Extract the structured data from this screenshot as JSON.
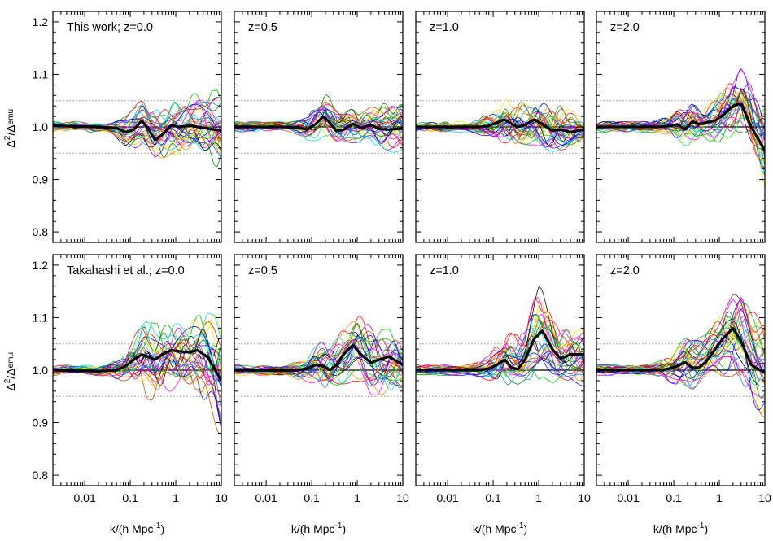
{
  "figure": {
    "ylabel_main": "Δ",
    "ylabel_sup": "2",
    "ylabel_mid": "/Δ",
    "ylabel_sub": "emu",
    "ylabel_sup2": "2",
    "xlabel_main": "k/(h Mpc",
    "xlabel_sup": "-1",
    "xlabel_end": ")"
  },
  "chart_data": [
    {
      "type": "line",
      "panel_label": "This work; z=0.0",
      "row": 0,
      "col": 0,
      "z": 0.0,
      "xscale": "log",
      "xlim": [
        0.002,
        10
      ],
      "ylim": [
        0.78,
        1.22
      ],
      "x_ticks": [
        "0.01",
        "0.1",
        "1",
        "10"
      ],
      "y_ticks": [
        "0.8",
        "0.9",
        "1.0",
        "1.1",
        "1.2"
      ],
      "reference_lines": [
        0.95,
        1.0,
        1.05
      ],
      "mean_curve": {
        "x": [
          0.002,
          0.02,
          0.05,
          0.08,
          0.12,
          0.18,
          0.25,
          0.35,
          0.5,
          0.8,
          1.2,
          2,
          3,
          5,
          10
        ],
        "y": [
          1.002,
          1.0,
          0.998,
          0.99,
          0.995,
          1.012,
          0.996,
          0.975,
          0.985,
          1.003,
          1.0,
          1.003,
          1.0,
          0.997,
          0.993
        ]
      },
      "spread_envelope": {
        "x": [
          0.002,
          0.03,
          0.08,
          0.2,
          0.5,
          1,
          3,
          10
        ],
        "lower": [
          0.99,
          0.99,
          0.965,
          0.96,
          0.935,
          0.945,
          0.94,
          0.925
        ],
        "upper": [
          1.01,
          1.01,
          1.02,
          1.06,
          1.04,
          1.055,
          1.065,
          1.075
        ]
      }
    },
    {
      "type": "line",
      "panel_label": "z=0.5",
      "row": 0,
      "col": 1,
      "z": 0.5,
      "xscale": "log",
      "xlim": [
        0.002,
        10
      ],
      "ylim": [
        0.78,
        1.22
      ],
      "x_ticks": [
        "0.01",
        "0.1",
        "1",
        "10"
      ],
      "y_ticks": [
        "0.8",
        "0.9",
        "1.0",
        "1.1",
        "1.2"
      ],
      "reference_lines": [
        0.95,
        1.0,
        1.05
      ],
      "mean_curve": {
        "x": [
          0.002,
          0.02,
          0.05,
          0.08,
          0.12,
          0.18,
          0.25,
          0.35,
          0.5,
          0.8,
          1.2,
          2,
          3,
          5,
          10
        ],
        "y": [
          1.0,
          1.0,
          0.999,
          0.995,
          1.005,
          1.02,
          1.008,
          0.992,
          0.995,
          1.006,
          0.998,
          1.004,
          0.996,
          0.995,
          0.997
        ]
      },
      "spread_envelope": {
        "x": [
          0.002,
          0.03,
          0.08,
          0.2,
          0.5,
          1,
          3,
          10
        ],
        "lower": [
          0.99,
          0.99,
          0.975,
          0.975,
          0.955,
          0.955,
          0.96,
          0.945
        ],
        "upper": [
          1.01,
          1.01,
          1.02,
          1.065,
          1.04,
          1.035,
          1.05,
          1.04
        ]
      }
    },
    {
      "type": "line",
      "panel_label": "z=1.0",
      "row": 0,
      "col": 2,
      "z": 1.0,
      "xscale": "log",
      "xlim": [
        0.002,
        10
      ],
      "ylim": [
        0.78,
        1.22
      ],
      "x_ticks": [
        "0.01",
        "0.1",
        "1",
        "10"
      ],
      "y_ticks": [
        "0.8",
        "0.9",
        "1.0",
        "1.1",
        "1.2"
      ],
      "reference_lines": [
        0.95,
        1.0,
        1.05
      ],
      "mean_curve": {
        "x": [
          0.002,
          0.02,
          0.05,
          0.08,
          0.12,
          0.18,
          0.25,
          0.35,
          0.5,
          0.8,
          1.2,
          2,
          3,
          5,
          10
        ],
        "y": [
          1.0,
          1.0,
          1.0,
          1.002,
          1.008,
          1.014,
          1.006,
          1.0,
          1.004,
          1.014,
          1.005,
          0.993,
          0.995,
          0.99,
          0.995
        ]
      },
      "spread_envelope": {
        "x": [
          0.002,
          0.03,
          0.08,
          0.2,
          0.5,
          1,
          3,
          10
        ],
        "lower": [
          0.99,
          0.99,
          0.98,
          0.965,
          0.96,
          0.955,
          0.96,
          0.965
        ],
        "upper": [
          1.01,
          1.01,
          1.025,
          1.06,
          1.045,
          1.06,
          1.045,
          1.02
        ]
      }
    },
    {
      "type": "line",
      "panel_label": "z=2.0",
      "row": 0,
      "col": 3,
      "z": 2.0,
      "xscale": "log",
      "xlim": [
        0.002,
        10
      ],
      "ylim": [
        0.78,
        1.22
      ],
      "x_ticks": [
        "0.01",
        "0.1",
        "1",
        "10"
      ],
      "y_ticks": [
        "0.8",
        "0.9",
        "1.0",
        "1.1",
        "1.2"
      ],
      "reference_lines": [
        0.95,
        1.0,
        1.05
      ],
      "mean_curve": {
        "x": [
          0.002,
          0.02,
          0.05,
          0.08,
          0.12,
          0.18,
          0.25,
          0.35,
          0.5,
          0.8,
          1.2,
          2,
          3,
          5,
          10
        ],
        "y": [
          1.0,
          1.0,
          1.0,
          1.002,
          1.005,
          0.995,
          1.01,
          1.005,
          1.008,
          1.012,
          1.022,
          1.04,
          1.045,
          1.0,
          0.955
        ]
      },
      "spread_envelope": {
        "x": [
          0.002,
          0.03,
          0.08,
          0.2,
          0.5,
          1,
          3,
          10
        ],
        "lower": [
          0.99,
          0.99,
          0.975,
          0.97,
          0.97,
          0.97,
          0.99,
          0.88
        ],
        "upper": [
          1.01,
          1.01,
          1.02,
          1.05,
          1.035,
          1.06,
          1.115,
          1.05
        ]
      }
    },
    {
      "type": "line",
      "panel_label": "Takahashi et al.; z=0.0",
      "row": 1,
      "col": 0,
      "z": 0.0,
      "xscale": "log",
      "xlim": [
        0.002,
        10
      ],
      "ylim": [
        0.78,
        1.22
      ],
      "x_ticks": [
        "0.01",
        "0.1",
        "1",
        "10"
      ],
      "y_ticks": [
        "0.8",
        "0.9",
        "1.0",
        "1.1",
        "1.2"
      ],
      "reference_lines": [
        0.95,
        1.0,
        1.05
      ],
      "mean_curve": {
        "x": [
          0.002,
          0.02,
          0.05,
          0.08,
          0.12,
          0.18,
          0.25,
          0.35,
          0.5,
          0.8,
          1.2,
          2,
          3,
          5,
          10
        ],
        "y": [
          1.0,
          0.998,
          1.0,
          1.008,
          1.02,
          1.03,
          1.025,
          1.02,
          1.03,
          1.038,
          1.036,
          1.034,
          1.038,
          1.025,
          0.98
        ]
      },
      "spread_envelope": {
        "x": [
          0.002,
          0.03,
          0.08,
          0.2,
          0.5,
          1,
          3,
          10
        ],
        "lower": [
          0.99,
          0.99,
          0.975,
          0.94,
          0.935,
          0.955,
          0.96,
          0.855
        ],
        "upper": [
          1.01,
          1.01,
          1.03,
          1.09,
          1.08,
          1.08,
          1.1,
          1.1
        ]
      }
    },
    {
      "type": "line",
      "panel_label": "z=0.5",
      "row": 1,
      "col": 1,
      "z": 0.5,
      "xscale": "log",
      "xlim": [
        0.002,
        10
      ],
      "ylim": [
        0.78,
        1.22
      ],
      "x_ticks": [
        "0.01",
        "0.1",
        "1",
        "10"
      ],
      "y_ticks": [
        "0.8",
        "0.9",
        "1.0",
        "1.1",
        "1.2"
      ],
      "reference_lines": [
        0.95,
        1.0,
        1.05
      ],
      "mean_curve": {
        "x": [
          0.002,
          0.02,
          0.05,
          0.08,
          0.12,
          0.18,
          0.25,
          0.35,
          0.5,
          0.8,
          1.2,
          2,
          3,
          5,
          10
        ],
        "y": [
          1.0,
          0.999,
          1.0,
          1.003,
          1.01,
          1.008,
          1.0,
          1.01,
          1.03,
          1.048,
          1.03,
          1.014,
          1.02,
          1.026,
          1.01
        ]
      },
      "spread_envelope": {
        "x": [
          0.002,
          0.03,
          0.08,
          0.2,
          0.5,
          1,
          3,
          10
        ],
        "lower": [
          0.99,
          0.99,
          0.975,
          0.95,
          0.96,
          0.98,
          0.945,
          0.94
        ],
        "upper": [
          1.01,
          1.01,
          1.025,
          1.06,
          1.07,
          1.115,
          1.07,
          1.065
        ]
      }
    },
    {
      "type": "line",
      "panel_label": "z=1.0",
      "row": 1,
      "col": 2,
      "z": 1.0,
      "xscale": "log",
      "xlim": [
        0.002,
        10
      ],
      "ylim": [
        0.78,
        1.22
      ],
      "x_ticks": [
        "0.01",
        "0.1",
        "1",
        "10"
      ],
      "y_ticks": [
        "0.8",
        "0.9",
        "1.0",
        "1.1",
        "1.2"
      ],
      "reference_lines": [
        0.95,
        1.0,
        1.05
      ],
      "mean_curve": {
        "x": [
          0.002,
          0.02,
          0.05,
          0.08,
          0.12,
          0.18,
          0.25,
          0.35,
          0.5,
          0.8,
          1.2,
          2,
          3,
          5,
          10
        ],
        "y": [
          1.0,
          1.0,
          1.0,
          1.003,
          1.01,
          1.02,
          1.005,
          1.002,
          1.02,
          1.06,
          1.075,
          1.04,
          1.022,
          1.03,
          1.03
        ]
      },
      "spread_envelope": {
        "x": [
          0.002,
          0.03,
          0.08,
          0.2,
          0.5,
          1,
          3,
          10
        ],
        "lower": [
          0.99,
          0.99,
          0.975,
          0.96,
          0.965,
          0.985,
          0.975,
          0.95
        ],
        "upper": [
          1.01,
          1.01,
          1.025,
          1.08,
          1.07,
          1.165,
          1.08,
          1.065
        ]
      }
    },
    {
      "type": "line",
      "panel_label": "z=2.0",
      "row": 1,
      "col": 3,
      "z": 2.0,
      "xscale": "log",
      "xlim": [
        0.002,
        10
      ],
      "ylim": [
        0.78,
        1.22
      ],
      "x_ticks": [
        "0.01",
        "0.1",
        "1",
        "10"
      ],
      "y_ticks": [
        "0.8",
        "0.9",
        "1.0",
        "1.1",
        "1.2"
      ],
      "reference_lines": [
        0.95,
        1.0,
        1.05
      ],
      "mean_curve": {
        "x": [
          0.002,
          0.02,
          0.05,
          0.08,
          0.12,
          0.18,
          0.25,
          0.35,
          0.5,
          0.8,
          1.2,
          2,
          3,
          5,
          10
        ],
        "y": [
          1.0,
          1.0,
          1.0,
          1.003,
          1.008,
          1.015,
          1.005,
          1.005,
          1.015,
          1.04,
          1.06,
          1.08,
          1.055,
          1.01,
          0.995
        ]
      },
      "spread_envelope": {
        "x": [
          0.002,
          0.03,
          0.08,
          0.2,
          0.5,
          1,
          3,
          10
        ],
        "lower": [
          0.99,
          0.99,
          0.975,
          0.97,
          0.975,
          0.985,
          0.97,
          0.91
        ],
        "upper": [
          1.01,
          1.01,
          1.025,
          1.07,
          1.07,
          1.1,
          1.16,
          1.09
        ]
      }
    }
  ],
  "colors": {
    "mean_curve": "#000000",
    "reference_line": "#000000",
    "dotted_band": "#888888",
    "ensemble_palette": [
      "#ff0000",
      "#00c000",
      "#0000ff",
      "#ff00ff",
      "#00d8d8",
      "#e8e800",
      "#000000",
      "#ff8800",
      "#8800cc",
      "#008800",
      "#cc4400",
      "#0088ff"
    ]
  }
}
